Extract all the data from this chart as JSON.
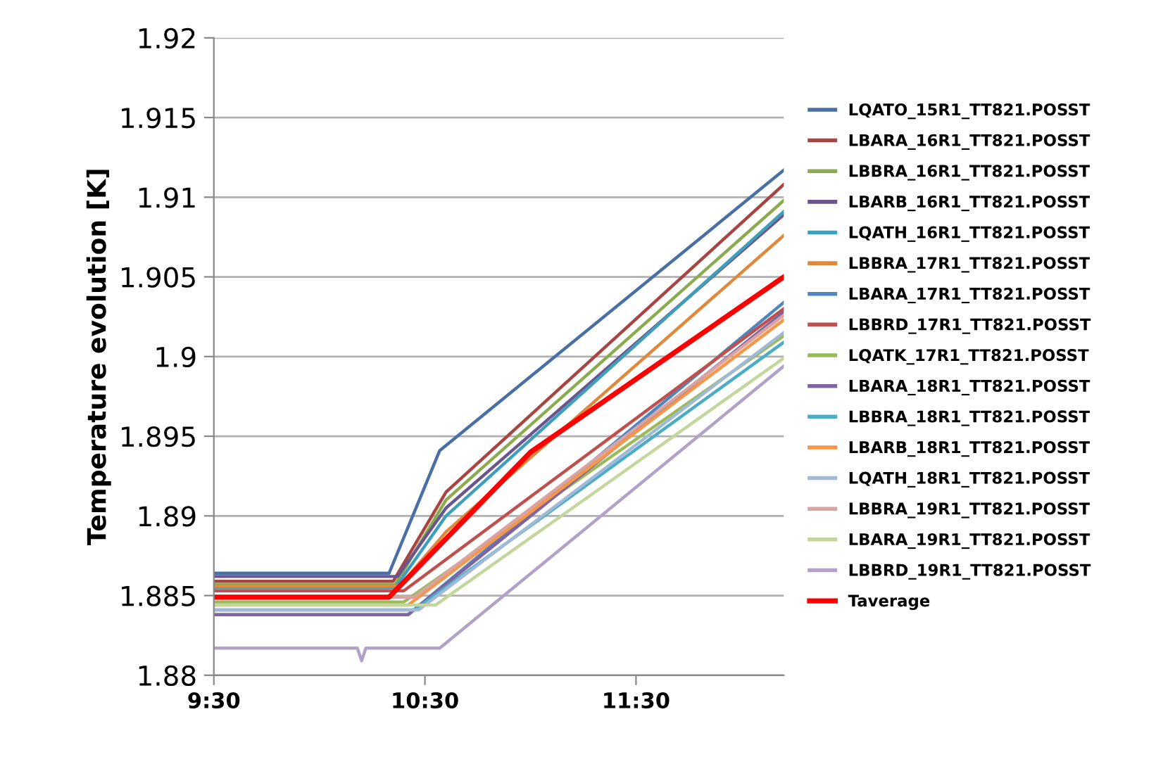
{
  "chart_data": {
    "type": "line",
    "ylabel": "Temperature evolution [K]",
    "xlim": [
      9.5,
      12.2
    ],
    "xticks": [
      {
        "value": 9.5,
        "label": "9:30"
      },
      {
        "value": 10.5,
        "label": "10:30"
      },
      {
        "value": 11.5,
        "label": "11:30"
      }
    ],
    "ylim": [
      1.88,
      1.92
    ],
    "yticks": [
      1.88,
      1.885,
      1.89,
      1.895,
      1.9,
      1.905,
      1.91,
      1.915,
      1.92
    ],
    "grid": "y",
    "legend": "right",
    "series": [
      {
        "name": "LQATO_15R1_TT821.POSST",
        "color": "#4a6fa5",
        "x": [
          9.5,
          10.33,
          10.57,
          12.2
        ],
        "values": [
          1.8864,
          1.8864,
          1.8941,
          1.9117
        ]
      },
      {
        "name": "LBARA_16R1_TT821.POSST",
        "color": "#a84542",
        "x": [
          9.5,
          10.35,
          10.6,
          12.2
        ],
        "values": [
          1.8859,
          1.8859,
          1.8915,
          1.9108
        ]
      },
      {
        "name": "LBBRA_16R1_TT821.POSST",
        "color": "#8aab4e",
        "x": [
          9.5,
          10.36,
          10.6,
          12.2
        ],
        "values": [
          1.8857,
          1.8857,
          1.891,
          1.9098
        ]
      },
      {
        "name": "LBARB_16R1_TT821.POSST",
        "color": "#6b558e",
        "x": [
          9.5,
          10.37,
          10.6,
          12.2
        ],
        "values": [
          1.8862,
          1.8862,
          1.8905,
          1.9089
        ]
      },
      {
        "name": "LQATH_16R1_TT821.POSST",
        "color": "#3f9fba",
        "x": [
          9.5,
          10.36,
          10.6,
          12.2
        ],
        "values": [
          1.8855,
          1.8855,
          1.89,
          1.9091
        ]
      },
      {
        "name": "LBBRA_17R1_TT821.POSST",
        "color": "#e0883c",
        "x": [
          9.5,
          10.38,
          10.6,
          12.2
        ],
        "values": [
          1.8856,
          1.8856,
          1.889,
          1.9076
        ]
      },
      {
        "name": "LBARA_17R1_TT821.POSST",
        "color": "#4f86c0",
        "x": [
          9.5,
          10.42,
          12.2
        ],
        "values": [
          1.8838,
          1.8838,
          1.9034
        ]
      },
      {
        "name": "LBBRD_17R1_TT821.POSST",
        "color": "#c0504d",
        "x": [
          9.5,
          10.4,
          12.2
        ],
        "values": [
          1.8853,
          1.8853,
          1.903
        ]
      },
      {
        "name": "LQATK_17R1_TT821.POSST",
        "color": "#9bbb59",
        "x": [
          9.5,
          10.4,
          12.2
        ],
        "values": [
          1.8846,
          1.8846,
          1.9013
        ]
      },
      {
        "name": "LBARA_18R1_TT821.POSST",
        "color": "#8064a2",
        "x": [
          9.5,
          10.42,
          12.2
        ],
        "values": [
          1.8838,
          1.8838,
          1.9028
        ]
      },
      {
        "name": "LBBRA_18R1_TT821.POSST",
        "color": "#4bacc6",
        "x": [
          9.5,
          10.45,
          12.2
        ],
        "values": [
          1.8841,
          1.8841,
          1.9009
        ]
      },
      {
        "name": "LBARB_18R1_TT821.POSST",
        "color": "#f79646",
        "x": [
          9.5,
          10.42,
          12.2
        ],
        "values": [
          1.8844,
          1.8844,
          1.9023
        ]
      },
      {
        "name": "LQATH_18R1_TT821.POSST",
        "color": "#9fb9d6",
        "x": [
          9.5,
          10.47,
          12.2
        ],
        "values": [
          1.8841,
          1.8841,
          1.9015
        ]
      },
      {
        "name": "LBBRA_19R1_TT821.POSST",
        "color": "#d9a3a2",
        "x": [
          9.5,
          10.45,
          12.2
        ],
        "values": [
          1.8849,
          1.8849,
          1.9026
        ]
      },
      {
        "name": "LBARA_19R1_TT821.POSST",
        "color": "#c3d69b",
        "x": [
          9.5,
          10.55,
          12.2
        ],
        "values": [
          1.8844,
          1.8844,
          1.8999
        ]
      },
      {
        "name": "LBBRD_19R1_TT821.POSST",
        "color": "#b3a2c7",
        "x": [
          9.5,
          10.18,
          10.2,
          10.22,
          10.57,
          12.2
        ],
        "values": [
          1.8817,
          1.8817,
          1.8809,
          1.8817,
          1.8817,
          1.8994
        ]
      },
      {
        "name": "Taverage",
        "color": "#ff0000",
        "x": [
          9.5,
          10.33,
          11.0,
          12.2
        ],
        "values": [
          1.8849,
          1.8849,
          1.894,
          1.905
        ]
      }
    ]
  }
}
